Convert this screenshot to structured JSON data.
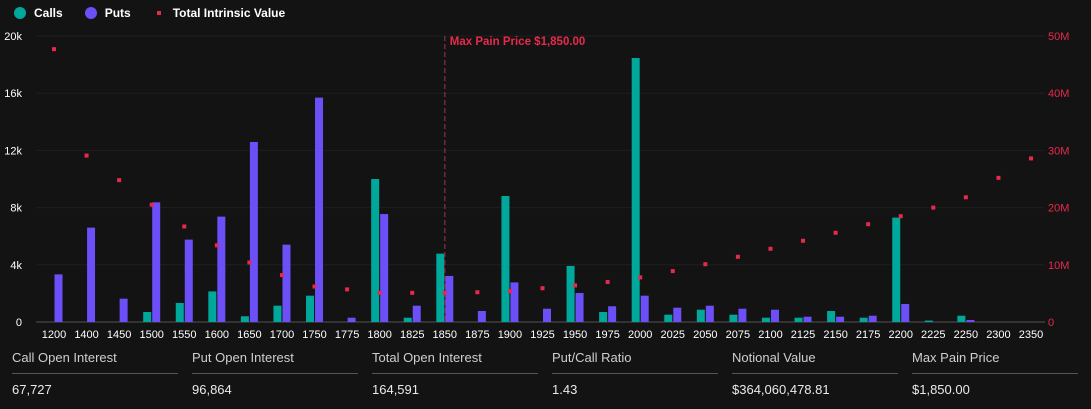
{
  "legend": {
    "calls": "Calls",
    "puts": "Puts",
    "intrinsic": "Total Intrinsic Value"
  },
  "colors": {
    "calls": "#00a89c",
    "puts": "#6c4ff6",
    "intrinsic": "#e8294c",
    "background": "#131313",
    "maxpain_line": "#8a2a44"
  },
  "chart_data": {
    "type": "bar",
    "categories": [
      "1200",
      "1400",
      "1450",
      "1500",
      "1550",
      "1600",
      "1650",
      "1700",
      "1750",
      "1775",
      "1800",
      "1825",
      "1850",
      "1875",
      "1900",
      "1925",
      "1950",
      "1975",
      "2000",
      "2025",
      "2050",
      "2075",
      "2100",
      "2125",
      "2150",
      "2175",
      "2200",
      "2225",
      "2250",
      "2300",
      "2350"
    ],
    "series": [
      {
        "name": "Calls",
        "axis": "left",
        "values": [
          0,
          0,
          0,
          700,
          1330,
          2140,
          400,
          1140,
          1840,
          0,
          10000,
          300,
          4780,
          0,
          8810,
          0,
          3920,
          700,
          18460,
          510,
          860,
          510,
          300,
          300,
          770,
          300,
          7300,
          100,
          440,
          0,
          0
        ]
      },
      {
        "name": "Puts",
        "axis": "left",
        "values": [
          3330,
          6600,
          1630,
          8370,
          5760,
          7370,
          12590,
          5410,
          15690,
          300,
          7550,
          1140,
          3220,
          770,
          2770,
          930,
          2030,
          1100,
          1840,
          1000,
          1140,
          930,
          860,
          370,
          370,
          440,
          1260,
          0,
          140,
          0,
          0
        ]
      },
      {
        "name": "Total Intrinsic Value",
        "axis": "right",
        "type": "scatter",
        "values": [
          47.7,
          29.1,
          24.8,
          20.5,
          16.7,
          13.4,
          10.4,
          8.2,
          6.2,
          5.7,
          5.1,
          5.1,
          5.1,
          5.2,
          5.4,
          5.9,
          6.4,
          7.0,
          7.8,
          8.9,
          10.1,
          11.4,
          12.8,
          14.2,
          15.6,
          17.1,
          18.5,
          20.0,
          21.8,
          25.2,
          28.6
        ]
      }
    ],
    "left_axis": {
      "ylim": [
        0,
        20000
      ],
      "ticks": [
        "0",
        "4k",
        "8k",
        "12k",
        "16k",
        "20k"
      ]
    },
    "right_axis": {
      "ylim": [
        0,
        50
      ],
      "unit": "M",
      "ticks": [
        "0",
        "10M",
        "20M",
        "30M",
        "40M",
        "50M"
      ]
    },
    "annotation": {
      "label": "Max Pain Price $1,850.00",
      "category": "1850"
    },
    "grid": true,
    "legend_position": "top-left"
  },
  "stats": [
    {
      "label": "Call Open Interest",
      "value": "67,727"
    },
    {
      "label": "Put Open Interest",
      "value": "96,864"
    },
    {
      "label": "Total Open Interest",
      "value": "164,591"
    },
    {
      "label": "Put/Call Ratio",
      "value": "1.43"
    },
    {
      "label": "Notional Value",
      "value": "$364,060,478.81"
    },
    {
      "label": "Max Pain Price",
      "value": "$1,850.00"
    }
  ]
}
